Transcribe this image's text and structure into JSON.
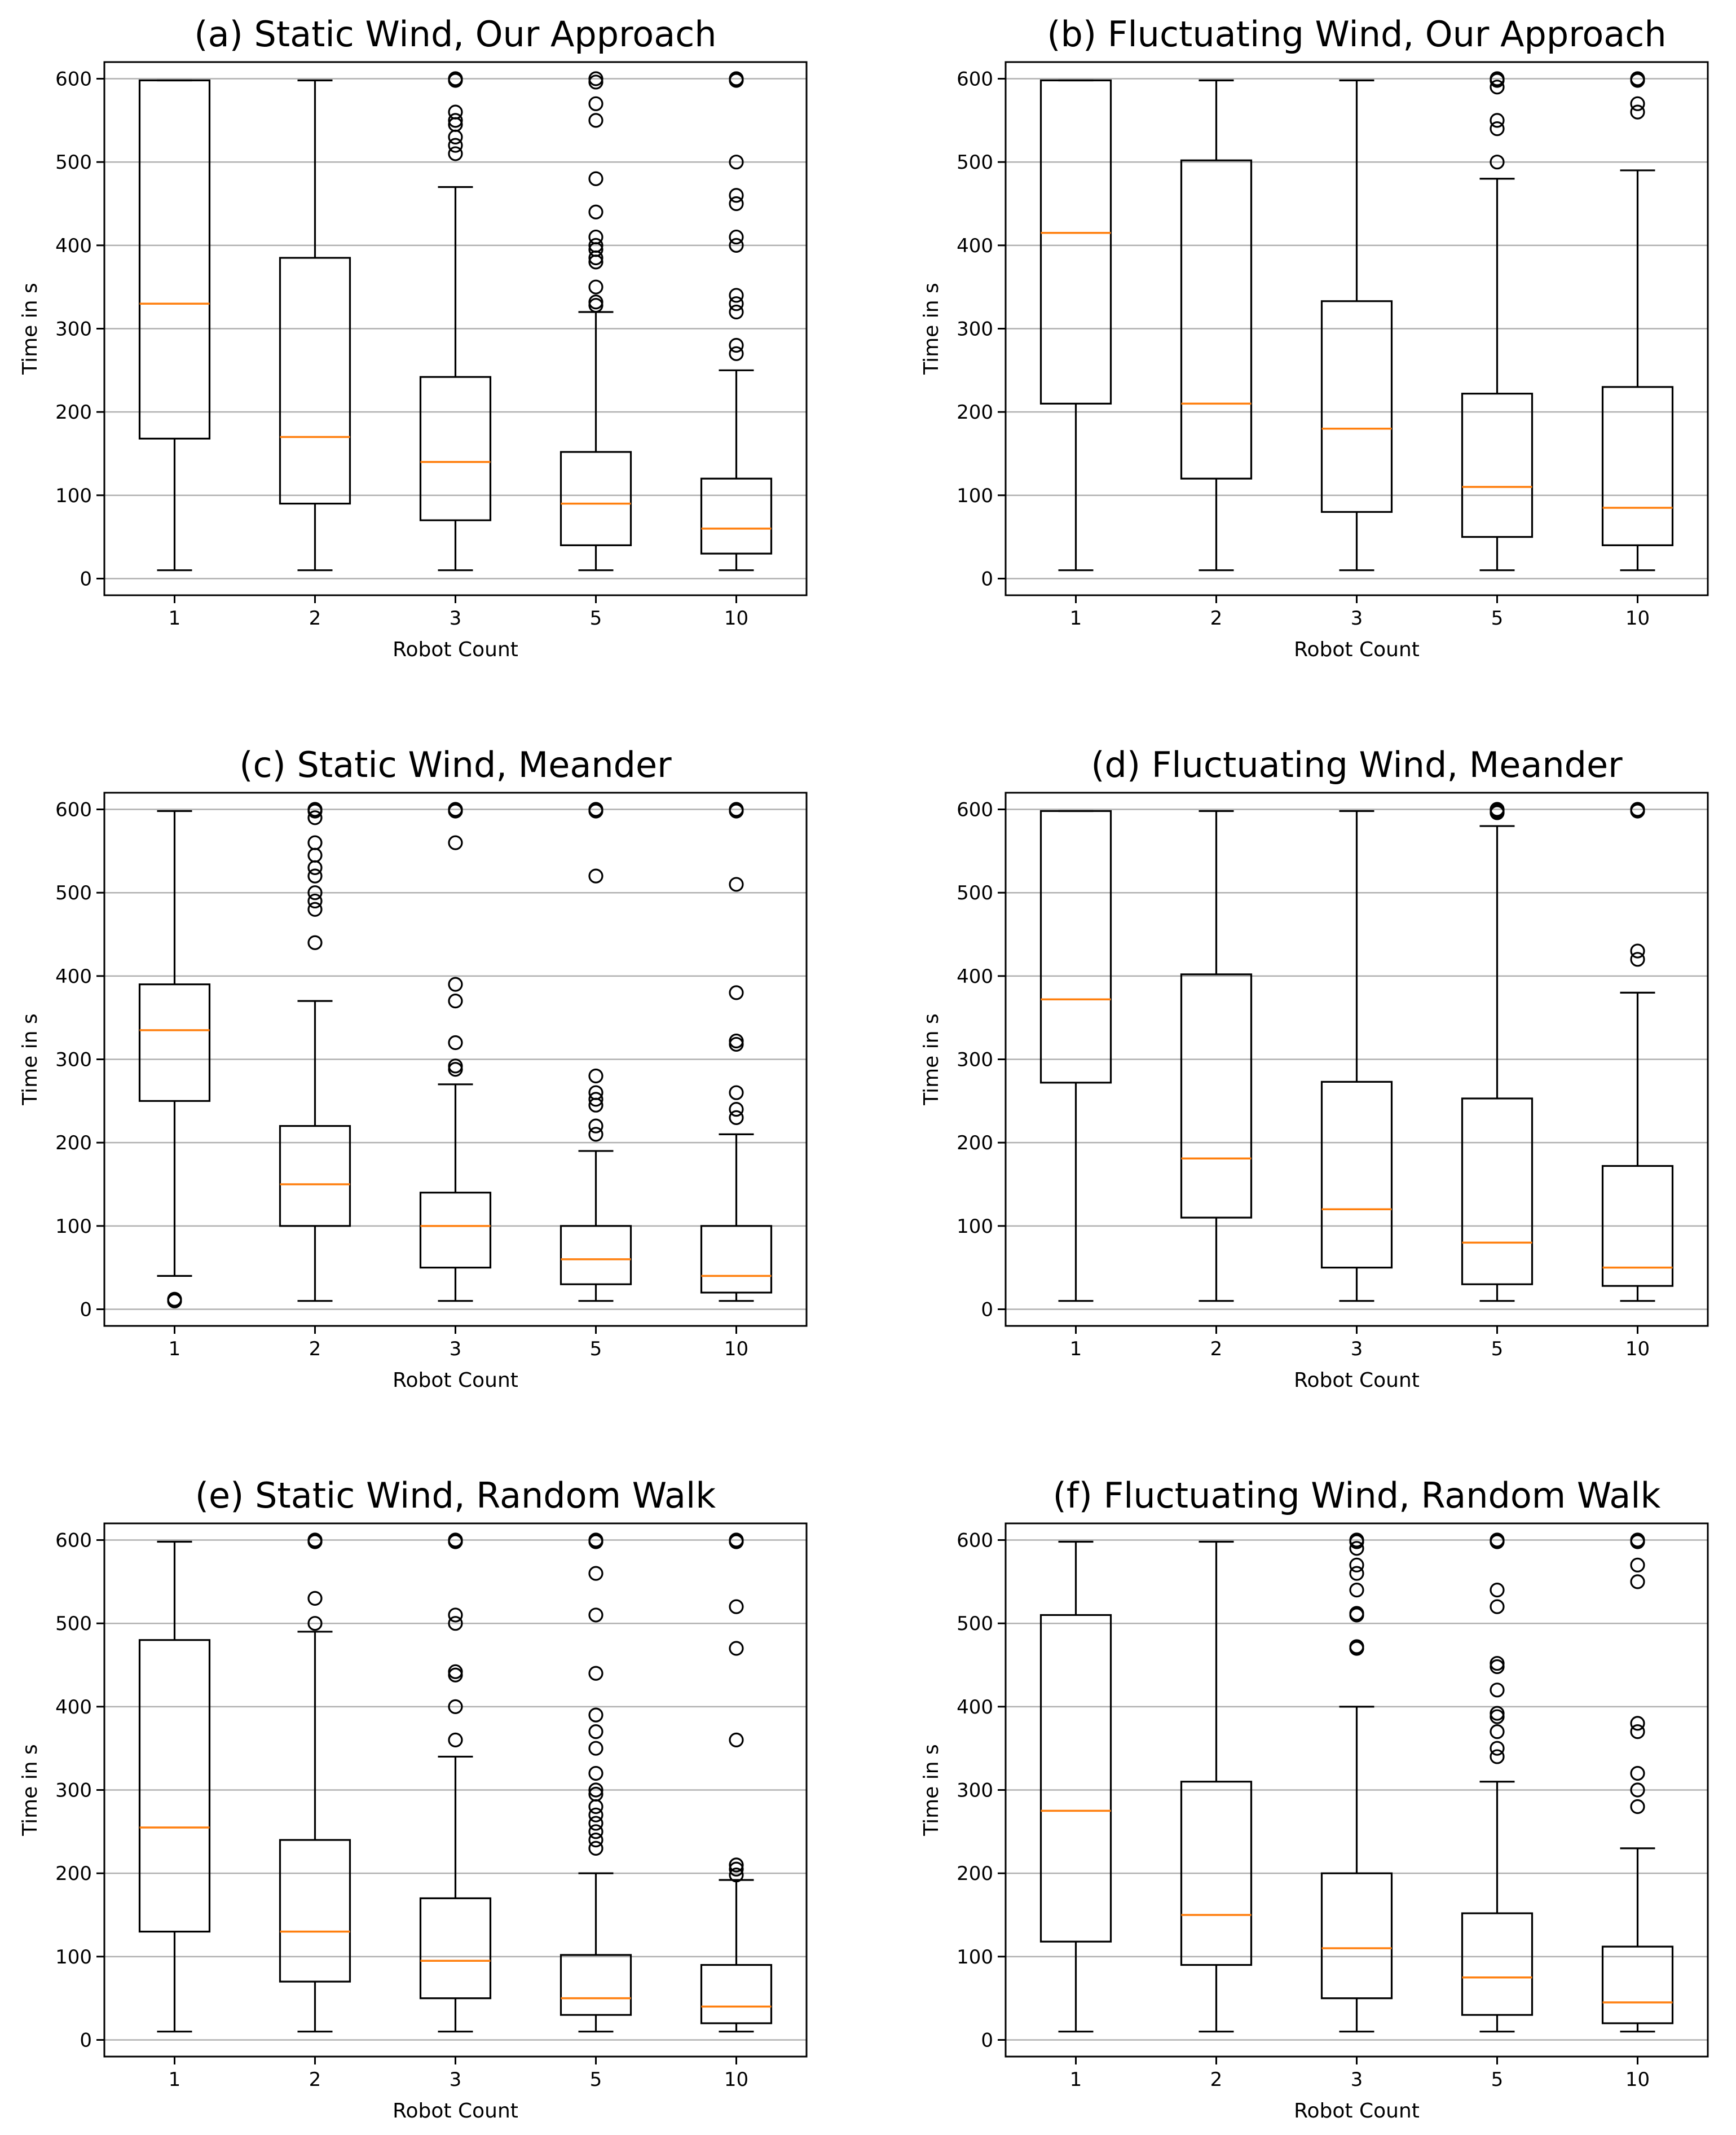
{
  "chart_data": [
    {
      "type": "box",
      "title": "(a) Static Wind, Our Approach",
      "xlabel": "Robot Count",
      "ylabel": "Time in s",
      "ylim": [
        -20,
        620
      ],
      "yticks": [
        "0",
        "100",
        "200",
        "300",
        "400",
        "500",
        "600"
      ],
      "grid": "y",
      "categories": [
        "1",
        "2",
        "3",
        "5",
        "10"
      ],
      "boxes": [
        {
          "whislo": 10,
          "q1": 168,
          "med": 330,
          "q3": 598,
          "whishi": 598,
          "fliers": []
        },
        {
          "whislo": 10,
          "q1": 90,
          "med": 170,
          "q3": 385,
          "whishi": 598,
          "fliers": []
        },
        {
          "whislo": 10,
          "q1": 70,
          "med": 140,
          "q3": 242,
          "whishi": 470,
          "fliers": [
            510,
            520,
            530,
            545,
            550,
            560,
            598,
            600
          ]
        },
        {
          "whislo": 10,
          "q1": 40,
          "med": 90,
          "q3": 152,
          "whishi": 320,
          "fliers": [
            328,
            332,
            350,
            380,
            385,
            395,
            400,
            410,
            440,
            480,
            550,
            570,
            596,
            600
          ]
        },
        {
          "whislo": 10,
          "q1": 30,
          "med": 60,
          "q3": 120,
          "whishi": 250,
          "fliers": [
            270,
            280,
            320,
            330,
            340,
            400,
            410,
            450,
            460,
            500,
            598,
            600
          ]
        }
      ]
    },
    {
      "type": "box",
      "title": "(b) Fluctuating Wind, Our Approach",
      "xlabel": "Robot Count",
      "ylabel": "Time in s",
      "ylim": [
        -20,
        620
      ],
      "yticks": [
        "0",
        "100",
        "200",
        "300",
        "400",
        "500",
        "600"
      ],
      "grid": "y",
      "categories": [
        "1",
        "2",
        "3",
        "5",
        "10"
      ],
      "boxes": [
        {
          "whislo": 10,
          "q1": 210,
          "med": 415,
          "q3": 598,
          "whishi": 598,
          "fliers": []
        },
        {
          "whislo": 10,
          "q1": 120,
          "med": 210,
          "q3": 502,
          "whishi": 598,
          "fliers": []
        },
        {
          "whislo": 10,
          "q1": 80,
          "med": 180,
          "q3": 333,
          "whishi": 598,
          "fliers": []
        },
        {
          "whislo": 10,
          "q1": 50,
          "med": 110,
          "q3": 222,
          "whishi": 480,
          "fliers": [
            500,
            540,
            550,
            590,
            598,
            600
          ]
        },
        {
          "whislo": 10,
          "q1": 40,
          "med": 85,
          "q3": 230,
          "whishi": 490,
          "fliers": [
            560,
            570,
            598,
            600
          ]
        }
      ]
    },
    {
      "type": "box",
      "title": "(c) Static Wind, Meander",
      "xlabel": "Robot Count",
      "ylabel": "Time in s",
      "ylim": [
        -20,
        620
      ],
      "yticks": [
        "0",
        "100",
        "200",
        "300",
        "400",
        "500",
        "600"
      ],
      "grid": "y",
      "categories": [
        "1",
        "2",
        "3",
        "5",
        "10"
      ],
      "boxes": [
        {
          "whislo": 40,
          "q1": 250,
          "med": 335,
          "q3": 390,
          "whishi": 598,
          "fliers": [
            10,
            12
          ]
        },
        {
          "whislo": 10,
          "q1": 100,
          "med": 150,
          "q3": 220,
          "whishi": 370,
          "fliers": [
            440,
            480,
            490,
            500,
            520,
            530,
            545,
            560,
            590,
            598,
            600
          ]
        },
        {
          "whislo": 10,
          "q1": 50,
          "med": 100,
          "q3": 140,
          "whishi": 270,
          "fliers": [
            288,
            292,
            320,
            370,
            390,
            560,
            598,
            600
          ]
        },
        {
          "whislo": 10,
          "q1": 30,
          "med": 60,
          "q3": 100,
          "whishi": 190,
          "fliers": [
            210,
            220,
            245,
            252,
            260,
            280,
            520,
            598,
            600
          ]
        },
        {
          "whislo": 10,
          "q1": 20,
          "med": 40,
          "q3": 100,
          "whishi": 210,
          "fliers": [
            230,
            240,
            260,
            318,
            322,
            380,
            510,
            598,
            600
          ]
        }
      ]
    },
    {
      "type": "box",
      "title": "(d) Fluctuating Wind, Meander",
      "xlabel": "Robot Count",
      "ylabel": "Time in s",
      "ylim": [
        -20,
        620
      ],
      "yticks": [
        "0",
        "100",
        "200",
        "300",
        "400",
        "500",
        "600"
      ],
      "grid": "y",
      "categories": [
        "1",
        "2",
        "3",
        "5",
        "10"
      ],
      "boxes": [
        {
          "whislo": 10,
          "q1": 272,
          "med": 372,
          "q3": 598,
          "whishi": 598,
          "fliers": []
        },
        {
          "whislo": 10,
          "q1": 110,
          "med": 181,
          "q3": 402,
          "whishi": 598,
          "fliers": []
        },
        {
          "whislo": 10,
          "q1": 50,
          "med": 120,
          "q3": 273,
          "whishi": 598,
          "fliers": []
        },
        {
          "whislo": 10,
          "q1": 30,
          "med": 80,
          "q3": 253,
          "whishi": 580,
          "fliers": [
            596,
            598,
            600
          ]
        },
        {
          "whislo": 10,
          "q1": 28,
          "med": 50,
          "q3": 172,
          "whishi": 380,
          "fliers": [
            420,
            430,
            598,
            600
          ]
        }
      ]
    },
    {
      "type": "box",
      "title": "(e) Static Wind, Random Walk",
      "xlabel": "Robot Count",
      "ylabel": "Time in s",
      "ylim": [
        -20,
        620
      ],
      "yticks": [
        "0",
        "100",
        "200",
        "300",
        "400",
        "500",
        "600"
      ],
      "grid": "y",
      "categories": [
        "1",
        "2",
        "3",
        "5",
        "10"
      ],
      "boxes": [
        {
          "whislo": 10,
          "q1": 130,
          "med": 255,
          "q3": 480,
          "whishi": 598,
          "fliers": []
        },
        {
          "whislo": 10,
          "q1": 70,
          "med": 130,
          "q3": 240,
          "whishi": 490,
          "fliers": [
            500,
            530,
            598,
            600
          ]
        },
        {
          "whislo": 10,
          "q1": 50,
          "med": 95,
          "q3": 170,
          "whishi": 340,
          "fliers": [
            360,
            400,
            438,
            442,
            500,
            510,
            598,
            600
          ]
        },
        {
          "whislo": 10,
          "q1": 30,
          "med": 50,
          "q3": 102,
          "whishi": 200,
          "fliers": [
            230,
            240,
            250,
            260,
            270,
            280,
            295,
            300,
            320,
            350,
            370,
            390,
            440,
            510,
            560,
            598,
            600
          ]
        },
        {
          "whislo": 10,
          "q1": 20,
          "med": 40,
          "q3": 90,
          "whishi": 192,
          "fliers": [
            198,
            205,
            210,
            360,
            470,
            520,
            598,
            600
          ]
        }
      ]
    },
    {
      "type": "box",
      "title": "(f) Fluctuating Wind, Random Walk",
      "xlabel": "Robot Count",
      "ylabel": "Time in s",
      "ylim": [
        -20,
        620
      ],
      "yticks": [
        "0",
        "100",
        "200",
        "300",
        "400",
        "500",
        "600"
      ],
      "grid": "y",
      "categories": [
        "1",
        "2",
        "3",
        "5",
        "10"
      ],
      "boxes": [
        {
          "whislo": 10,
          "q1": 118,
          "med": 275,
          "q3": 510,
          "whishi": 598,
          "fliers": []
        },
        {
          "whislo": 10,
          "q1": 90,
          "med": 150,
          "q3": 310,
          "whishi": 598,
          "fliers": []
        },
        {
          "whislo": 10,
          "q1": 50,
          "med": 110,
          "q3": 200,
          "whishi": 400,
          "fliers": [
            470,
            472,
            510,
            512,
            540,
            560,
            570,
            590,
            598,
            600
          ]
        },
        {
          "whislo": 10,
          "q1": 30,
          "med": 75,
          "q3": 152,
          "whishi": 310,
          "fliers": [
            340,
            350,
            370,
            388,
            392,
            420,
            448,
            452,
            520,
            540,
            598,
            600
          ]
        },
        {
          "whislo": 10,
          "q1": 20,
          "med": 45,
          "q3": 112,
          "whishi": 230,
          "fliers": [
            280,
            300,
            320,
            370,
            380,
            550,
            570,
            598,
            600
          ]
        }
      ]
    }
  ]
}
